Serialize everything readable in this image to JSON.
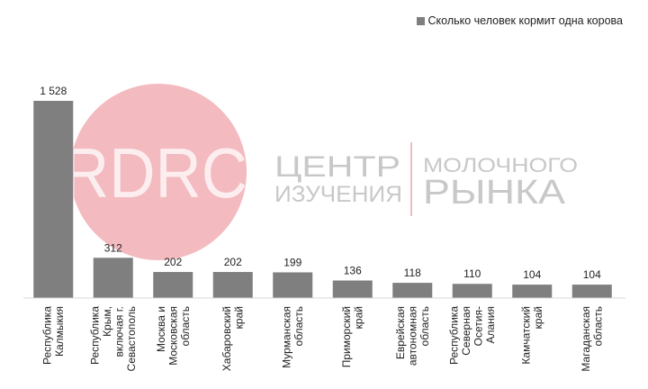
{
  "chart_data": {
    "type": "bar",
    "legend": "Сколько человек кормит одна корова",
    "categories": [
      [
        "Республика",
        "Калмыкия"
      ],
      [
        "Республика",
        "Крым,",
        "включая г.",
        "Севастополь"
      ],
      [
        "Москва и",
        "Московская",
        "область"
      ],
      [
        "Хабаровский",
        "край"
      ],
      [
        "Мурманская",
        "область"
      ],
      [
        "Приморский",
        "край"
      ],
      [
        "Еврейская",
        "автономная",
        "область"
      ],
      [
        "Республика",
        "Северная",
        "Осетия-",
        "Алания"
      ],
      [
        "Камчатский",
        "край"
      ],
      [
        "Магаданская",
        "область"
      ]
    ],
    "values": [
      1528,
      312,
      202,
      202,
      199,
      136,
      118,
      110,
      104,
      104
    ],
    "value_labels": [
      "1 528",
      "312",
      "202",
      "202",
      "199",
      "136",
      "118",
      "110",
      "104",
      "104"
    ],
    "ylim": [
      0,
      1600
    ],
    "bar_color": "#7f7f7f",
    "legend_position": "top-right"
  },
  "watermark": {
    "logo_text": "RDRC",
    "title_line1": "ЦЕНТР",
    "title_line2": "ИЗУЧЕНИЯ",
    "title_line3": "МОЛОЧНОГО",
    "title_line4": "РЫНКА",
    "circle_color": "#f2b6bd"
  }
}
